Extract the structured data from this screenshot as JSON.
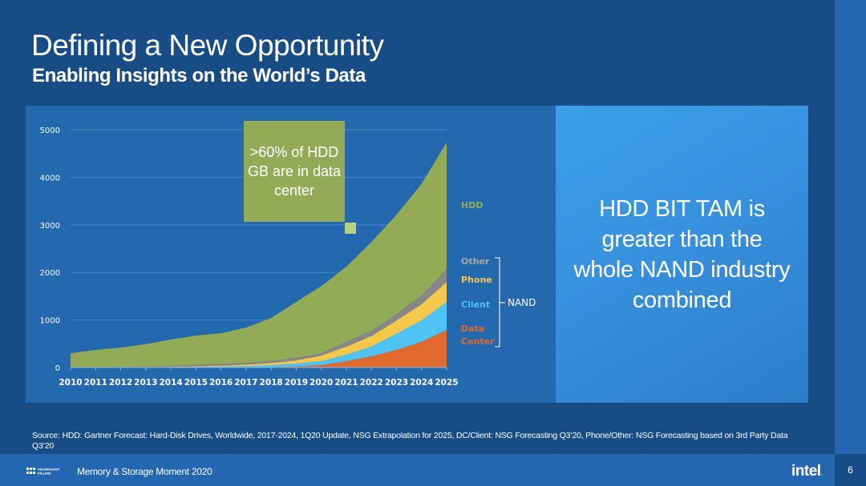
{
  "header": {
    "title": "Defining a New Opportunity",
    "subtitle": "Enabling Insights on the World’s Data"
  },
  "callout": {
    "text": "HDD BIT TAM is greater than the whole NAND industry combined"
  },
  "annotation": {
    "text": ">60% of HDD GB are in data center"
  },
  "legend": {
    "hdd": "HDD",
    "other": "Other",
    "phone": "Phone",
    "client": "Client",
    "data_center_line1": "Data",
    "data_center_line2": "Center",
    "group": "NAND"
  },
  "colors": {
    "hdd": "#93ab57",
    "other": "#878787",
    "phone": "#f5c84c",
    "client": "#4fc3f3",
    "data_center": "#e06a2e",
    "background": "#174c85",
    "panel": "#2468ae"
  },
  "chart_data": {
    "type": "area",
    "stacked": true,
    "title": "",
    "xlabel": "",
    "ylabel": "",
    "x": [
      "2010",
      "2011",
      "2012",
      "2013",
      "2014",
      "2015",
      "2016",
      "2017",
      "2018",
      "2019",
      "2020",
      "2021",
      "2022",
      "2023",
      "2024",
      "2025"
    ],
    "ylim": [
      0,
      5000
    ],
    "yticks": [
      "0",
      "1000",
      "2000",
      "3000",
      "4000",
      "5000"
    ],
    "grid": true,
    "legend_position": "right",
    "series": [
      {
        "name": "Data Center",
        "group": "NAND",
        "values": [
          0,
          0,
          0,
          1,
          1,
          2,
          3,
          5,
          10,
          20,
          50,
          135,
          235,
          370,
          540,
          790
        ]
      },
      {
        "name": "Client",
        "group": "NAND",
        "values": [
          0,
          1,
          2,
          4,
          6,
          10,
          17,
          25,
          40,
          65,
          85,
          135,
          205,
          340,
          450,
          590
        ]
      },
      {
        "name": "Phone",
        "group": "NAND",
        "values": [
          0,
          1,
          2,
          4,
          7,
          13,
          20,
          30,
          45,
          65,
          115,
          170,
          220,
          280,
          340,
          420
        ]
      },
      {
        "name": "Other",
        "group": "NAND",
        "values": [
          2,
          4,
          8,
          14,
          20,
          30,
          35,
          40,
          45,
          50,
          50,
          100,
          110,
          140,
          185,
          270
        ]
      },
      {
        "name": "HDD",
        "values": [
          298,
          364,
          408,
          467,
          556,
          615,
          645,
          740,
          900,
          1180,
          1410,
          1580,
          1870,
          2080,
          2345,
          2660
        ]
      }
    ]
  },
  "source": "Source: HDD: Gartner Forecast: Hard-Disk Drives, Worldwide, 2017-2024, 1Q20 Update, NSG Extrapolation for 2025, DC/Client: NSG Forecasting Q3’20, Phone/Other: NSG Forecasting based on 3rd Party Data Q3’20",
  "footer": {
    "program": "TECHNOLOGY PILLARS",
    "event": "Memory & Storage Moment 2020",
    "brand": "intel",
    "page_number": "6"
  }
}
